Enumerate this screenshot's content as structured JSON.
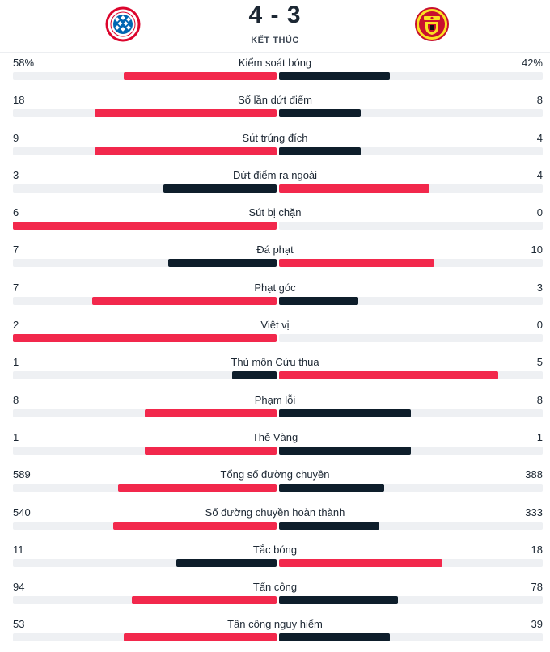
{
  "match": {
    "home_crest": "bayern-munich-crest",
    "away_crest": "manchester-united-crest",
    "score": "4 - 3",
    "status": "KẾT THÚC"
  },
  "colors": {
    "leader": "#f2284c",
    "trailer": "#0e1e2b",
    "track": "#eef0f3"
  },
  "stats": [
    {
      "label": "Kiểm soát bóng",
      "home": "58%",
      "away": "42%",
      "home_frac": 0.58,
      "away_frac": 0.42
    },
    {
      "label": "Số lần dứt điểm",
      "home": "18",
      "away": "8",
      "home_frac": 0.69,
      "away_frac": 0.31
    },
    {
      "label": "Sút trúng đích",
      "home": "9",
      "away": "4",
      "home_frac": 0.69,
      "away_frac": 0.31
    },
    {
      "label": "Dứt điểm ra ngoài",
      "home": "3",
      "away": "4",
      "home_frac": 0.43,
      "away_frac": 0.57
    },
    {
      "label": "Sút bị chặn",
      "home": "6",
      "away": "0",
      "home_frac": 1.0,
      "away_frac": 0.0
    },
    {
      "label": "Đá phạt",
      "home": "7",
      "away": "10",
      "home_frac": 0.41,
      "away_frac": 0.59
    },
    {
      "label": "Phạt góc",
      "home": "7",
      "away": "3",
      "home_frac": 0.7,
      "away_frac": 0.3
    },
    {
      "label": "Việt vị",
      "home": "2",
      "away": "0",
      "home_frac": 1.0,
      "away_frac": 0.0
    },
    {
      "label": "Thủ môn Cứu thua",
      "home": "1",
      "away": "5",
      "home_frac": 0.17,
      "away_frac": 0.83
    },
    {
      "label": "Phạm lỗi",
      "home": "8",
      "away": "8",
      "home_frac": 0.5,
      "away_frac": 0.5
    },
    {
      "label": "Thẻ Vàng",
      "home": "1",
      "away": "1",
      "home_frac": 0.5,
      "away_frac": 0.5
    },
    {
      "label": "Tổng số đường chuyền",
      "home": "589",
      "away": "388",
      "home_frac": 0.6,
      "away_frac": 0.4
    },
    {
      "label": "Số đường chuyền hoàn thành",
      "home": "540",
      "away": "333",
      "home_frac": 0.62,
      "away_frac": 0.38
    },
    {
      "label": "Tắc bóng",
      "home": "11",
      "away": "18",
      "home_frac": 0.38,
      "away_frac": 0.62
    },
    {
      "label": "Tấn công",
      "home": "94",
      "away": "78",
      "home_frac": 0.55,
      "away_frac": 0.45
    },
    {
      "label": "Tấn công nguy hiểm",
      "home": "53",
      "away": "39",
      "home_frac": 0.58,
      "away_frac": 0.42
    }
  ]
}
